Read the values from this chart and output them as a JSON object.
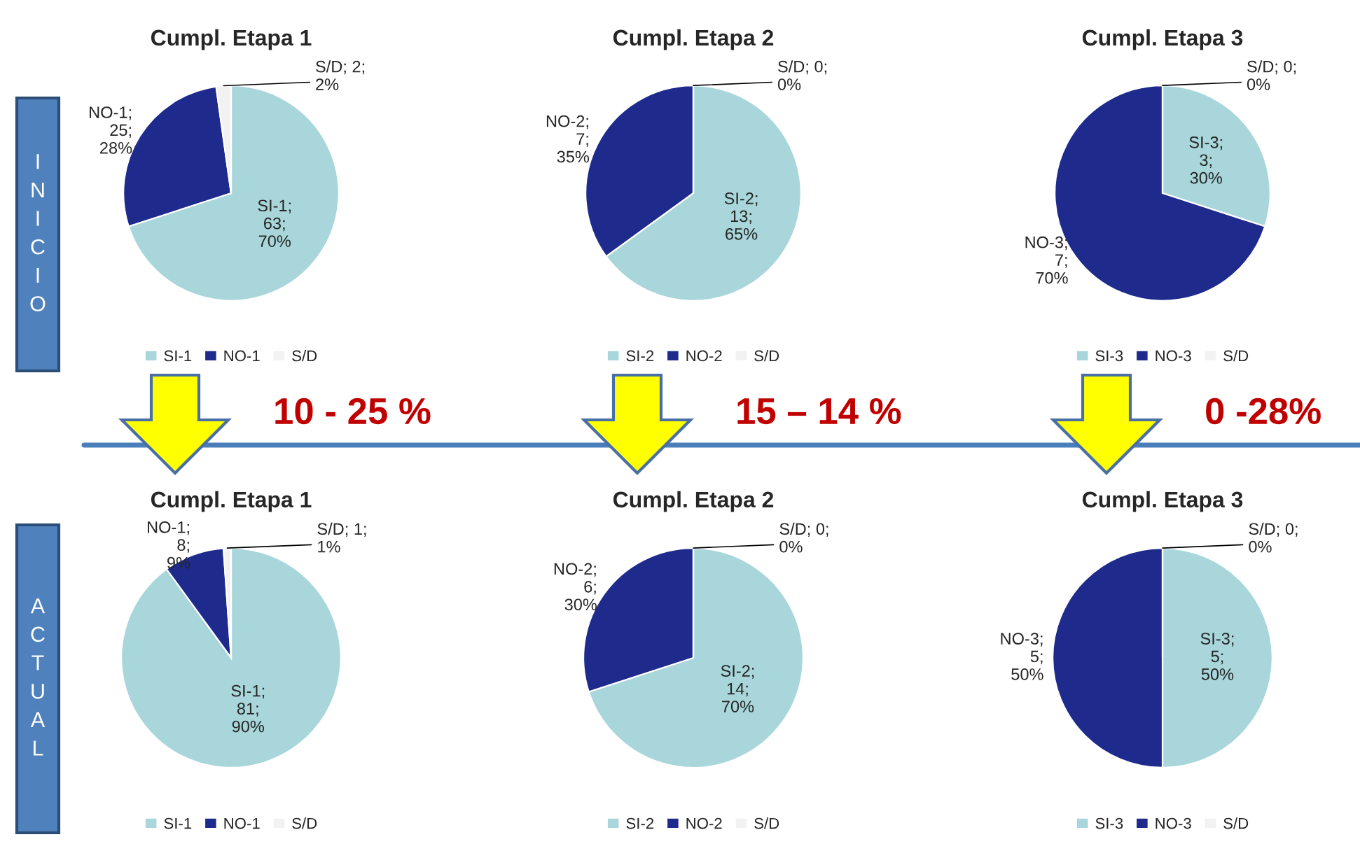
{
  "chart_data": [
    {
      "type": "pie",
      "title": "Cumpl. Etapa 1",
      "categories": [
        "SI-1",
        "NO-1",
        "S/D"
      ],
      "values": [
        63,
        25,
        2
      ],
      "colors": [
        "#a8d6db",
        "#1e2a8c",
        "#f2f2f2"
      ],
      "value_labels": [
        "SI-1; 63; 70%",
        "NO-1; 25; 28%",
        "S/D; 2; 2%"
      ],
      "legend": "bottom",
      "annotations": [
        "INICIO",
        "10 - 25 %"
      ]
    },
    {
      "type": "pie",
      "title": "Cumpl. Etapa 2",
      "categories": [
        "SI-2",
        "NO-2",
        "S/D"
      ],
      "values": [
        13,
        7,
        0
      ],
      "colors": [
        "#a8d6db",
        "#1e2a8c",
        "#f2f2f2"
      ],
      "value_labels": [
        "SI-2; 13; 65%",
        "NO-2; 7; 35%",
        "S/D; 0; 0%"
      ],
      "legend": "bottom",
      "annotations": [
        "15 – 14 %"
      ]
    },
    {
      "type": "pie",
      "title": "Cumpl. Etapa 3",
      "categories": [
        "SI-3",
        "NO-3",
        "S/D"
      ],
      "values": [
        3,
        7,
        0
      ],
      "colors": [
        "#a8d6db",
        "#1e2a8c",
        "#f2f2f2"
      ],
      "value_labels": [
        "SI-3; 3; 30%",
        "NO-3; 7; 70%",
        "S/D; 0; 0%"
      ],
      "legend": "bottom",
      "annotations": [
        "0 -28%"
      ]
    },
    {
      "type": "pie",
      "title": "Cumpl. Etapa 1",
      "categories": [
        "SI-1",
        "NO-1",
        "S/D"
      ],
      "values": [
        81,
        8,
        1
      ],
      "colors": [
        "#a8d6db",
        "#1e2a8c",
        "#f2f2f2"
      ],
      "value_labels": [
        "SI-1; 81; 90%",
        "NO-1; 8; 9%",
        "S/D; 1; 1%"
      ],
      "legend": "bottom",
      "annotations": [
        "ACTUAL"
      ]
    },
    {
      "type": "pie",
      "title": "Cumpl. Etapa 2",
      "categories": [
        "SI-2",
        "NO-2",
        "S/D"
      ],
      "values": [
        14,
        6,
        0
      ],
      "colors": [
        "#a8d6db",
        "#1e2a8c",
        "#f2f2f2"
      ],
      "value_labels": [
        "SI-2; 14; 70%",
        "NO-2; 6; 30%",
        "S/D; 0; 0%"
      ],
      "legend": "bottom"
    },
    {
      "type": "pie",
      "title": "Cumpl. Etapa 3",
      "categories": [
        "SI-3",
        "NO-3",
        "S/D"
      ],
      "values": [
        5,
        5,
        0
      ],
      "colors": [
        "#a8d6db",
        "#1e2a8c",
        "#f2f2f2"
      ],
      "value_labels": [
        "SI-3; 5; 50%",
        "NO-3; 5; 50%",
        "S/D; 0; 0%"
      ],
      "legend": "bottom"
    }
  ]
}
